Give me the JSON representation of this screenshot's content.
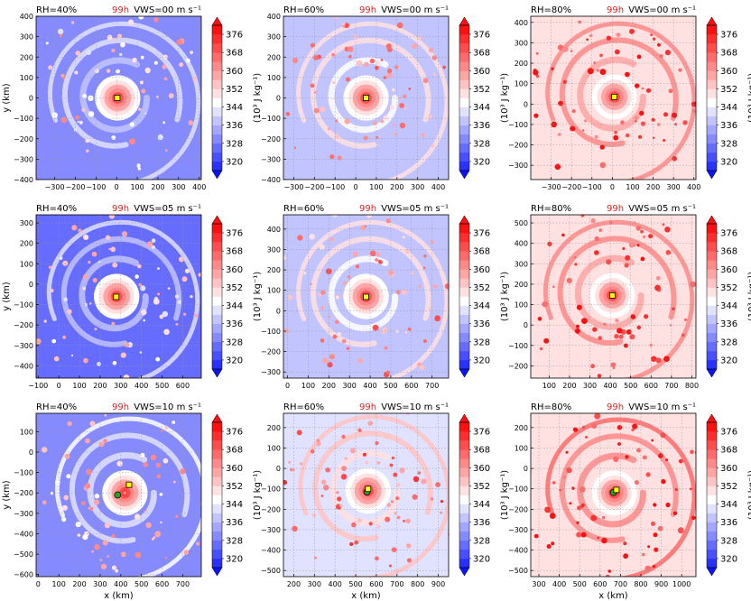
{
  "figure": {
    "x_axis_label": "x (km)",
    "y_axis_label": "y (km)",
    "colorbar_label": "(10³ J kg⁻¹)",
    "colorbar_ticks": [
      320,
      328,
      336,
      344,
      352,
      360,
      368,
      376
    ],
    "colorbar_range": [
      316,
      380
    ],
    "time_label": "99h",
    "colors": {
      "time_label": "#e41a1c",
      "low": "#0a14ff",
      "mid": "#ffffff",
      "high": "#ff1010",
      "green_marker": "#2ca02c",
      "yellow_marker": "#ffff00"
    }
  },
  "chart_data": [
    {
      "type": "heatmap",
      "rh_label": "RH=40%",
      "vws_label": "VWS=00 m s⁻¹",
      "time_label": "99h",
      "xlim": [
        -390,
        410
      ],
      "ylim": [
        -400,
        400
      ],
      "xticks": [
        -300,
        -200,
        -100,
        0,
        100,
        200,
        300,
        400
      ],
      "xtick_labels": [
        "−300",
        "−200",
        "−100",
        "0",
        "100",
        "200",
        "300",
        "400"
      ],
      "yticks": [
        -400,
        -300,
        -200,
        -100,
        0,
        100,
        200,
        300,
        400
      ],
      "ytick_labels": [
        "−400",
        "−300",
        "−200",
        "−100",
        "0",
        "100",
        "200",
        "300",
        "400"
      ],
      "center": [
        5,
        0
      ],
      "background": 330,
      "markers": [
        {
          "color": "yellow",
          "x": 3,
          "y": 0
        }
      ]
    },
    {
      "type": "heatmap",
      "rh_label": "RH=60%",
      "vws_label": "VWS=00 m s⁻¹",
      "time_label": "99h",
      "xlim": [
        -350,
        450
      ],
      "ylim": [
        -400,
        400
      ],
      "xticks": [
        -300,
        -200,
        -100,
        0,
        100,
        200,
        300,
        400
      ],
      "xtick_labels": [
        "−300",
        "−200",
        "−100",
        "0",
        "100",
        "200",
        "300",
        "400"
      ],
      "yticks": [
        -400,
        -300,
        -200,
        -100,
        0,
        100,
        200,
        300,
        400
      ],
      "ytick_labels": [
        "−400",
        "−300",
        "−200",
        "−100",
        "0",
        "100",
        "200",
        "300",
        "400"
      ],
      "center": [
        50,
        0
      ],
      "background": 338,
      "markers": [
        {
          "color": "yellow",
          "x": 50,
          "y": 0
        }
      ]
    },
    {
      "type": "heatmap",
      "rh_label": "RH=80%",
      "vws_label": "VWS=00 m s⁻¹",
      "time_label": "99h",
      "xlim": [
        -400,
        410
      ],
      "ylim": [
        -370,
        430
      ],
      "xticks": [
        -300,
        -200,
        -100,
        0,
        100,
        200,
        300,
        400
      ],
      "xtick_labels": [
        "−300",
        "−200",
        "−100",
        "0",
        "100",
        "200",
        "300",
        "400"
      ],
      "yticks": [
        -300,
        -200,
        -100,
        0,
        100,
        200,
        300,
        400
      ],
      "ytick_labels": [
        "−300",
        "−200",
        "−100",
        "0",
        "100",
        "200",
        "300",
        "400"
      ],
      "center": [
        10,
        35
      ],
      "background": 350,
      "markers": [
        {
          "color": "yellow",
          "x": 10,
          "y": 35
        }
      ]
    },
    {
      "type": "heatmap",
      "rh_label": "RH=40%",
      "vws_label": "VWS=05 m s⁻¹",
      "time_label": "99h",
      "xlim": [
        -110,
        690
      ],
      "ylim": [
        -460,
        340
      ],
      "xticks": [
        -100,
        0,
        100,
        200,
        300,
        400,
        500,
        600
      ],
      "xtick_labels": [
        "−100",
        "0",
        "100",
        "200",
        "300",
        "400",
        "500",
        "600"
      ],
      "yticks": [
        -400,
        -300,
        -200,
        -100,
        0,
        100,
        200,
        300
      ],
      "ytick_labels": [
        "−400",
        "−300",
        "−200",
        "−100",
        "0",
        "100",
        "200",
        "300"
      ],
      "center": [
        280,
        -60
      ],
      "background": 328,
      "markers": [
        {
          "color": "yellow",
          "x": 278,
          "y": -62
        }
      ]
    },
    {
      "type": "heatmap",
      "rh_label": "RH=60%",
      "vws_label": "VWS=05 m s⁻¹",
      "time_label": "99h",
      "xlim": [
        -20,
        780
      ],
      "ylim": [
        -330,
        470
      ],
      "xticks": [
        0,
        100,
        200,
        300,
        400,
        500,
        600,
        700
      ],
      "xtick_labels": [
        "0",
        "100",
        "200",
        "300",
        "400",
        "500",
        "600",
        "700"
      ],
      "yticks": [
        -300,
        -200,
        -100,
        0,
        100,
        200,
        300,
        400
      ],
      "ytick_labels": [
        "−300",
        "−200",
        "−100",
        "0",
        "100",
        "200",
        "300",
        "400"
      ],
      "center": [
        380,
        70
      ],
      "background": 338,
      "markers": [
        {
          "color": "yellow",
          "x": 380,
          "y": 68
        }
      ]
    },
    {
      "type": "heatmap",
      "rh_label": "RH=80%",
      "vws_label": "VWS=05 m s⁻¹",
      "time_label": "99h",
      "xlim": [
        10,
        820
      ],
      "ylim": [
        -260,
        540
      ],
      "xticks": [
        100,
        200,
        300,
        400,
        500,
        600,
        700,
        800
      ],
      "xtick_labels": [
        "100",
        "200",
        "300",
        "400",
        "500",
        "600",
        "700",
        "800"
      ],
      "yticks": [
        -200,
        -100,
        0,
        100,
        200,
        300,
        400,
        500
      ],
      "ytick_labels": [
        "−200",
        "−100",
        "0",
        "100",
        "200",
        "300",
        "400",
        "500"
      ],
      "center": [
        410,
        145
      ],
      "background": 350,
      "markers": [
        {
          "color": "yellow",
          "x": 410,
          "y": 145
        }
      ]
    },
    {
      "type": "heatmap",
      "rh_label": "RH=40%",
      "vws_label": "VWS=10 m s⁻¹",
      "time_label": "99h",
      "xlim": [
        -10,
        790
      ],
      "ylim": [
        -610,
        190
      ],
      "xticks": [
        0,
        100,
        200,
        300,
        400,
        500,
        600,
        700
      ],
      "xtick_labels": [
        "0",
        "100",
        "200",
        "300",
        "400",
        "500",
        "600",
        "700"
      ],
      "yticks": [
        -600,
        -500,
        -400,
        -300,
        -200,
        -100,
        0,
        100
      ],
      "ytick_labels": [
        "−600",
        "−500",
        "−400",
        "−300",
        "−200",
        "−100",
        "0",
        "100"
      ],
      "center": [
        420,
        -200
      ],
      "background": 332,
      "markers": [
        {
          "color": "green",
          "x": 385,
          "y": -210
        },
        {
          "color": "yellow",
          "x": 440,
          "y": -160
        }
      ]
    },
    {
      "type": "heatmap",
      "rh_label": "RH=60%",
      "vws_label": "VWS=10 m s⁻¹",
      "time_label": "99h",
      "xlim": [
        150,
        950
      ],
      "ylim": [
        -530,
        270
      ],
      "xticks": [
        200,
        300,
        400,
        500,
        600,
        700,
        800,
        900
      ],
      "xtick_labels": [
        "200",
        "300",
        "400",
        "500",
        "600",
        "700",
        "800",
        "900"
      ],
      "yticks": [
        -500,
        -400,
        -300,
        -200,
        -100,
        0,
        100,
        200
      ],
      "ytick_labels": [
        "−500",
        "−400",
        "−300",
        "−200",
        "−100",
        "0",
        "100",
        "200"
      ],
      "center": [
        560,
        -110
      ],
      "background": 342,
      "markers": [
        {
          "color": "green",
          "x": 555,
          "y": -115
        },
        {
          "color": "yellow",
          "x": 560,
          "y": -100
        }
      ]
    },
    {
      "type": "heatmap",
      "rh_label": "RH=80%",
      "vws_label": "VWS=10 m s⁻¹",
      "time_label": "99h",
      "xlim": [
        260,
        1070
      ],
      "ylim": [
        -530,
        270
      ],
      "xticks": [
        300,
        400,
        500,
        600,
        700,
        800,
        900,
        1000
      ],
      "xtick_labels": [
        "300",
        "400",
        "500",
        "600",
        "700",
        "800",
        "900",
        "1000"
      ],
      "yticks": [
        -500,
        -400,
        -300,
        -200,
        -100,
        0,
        100,
        200
      ],
      "ytick_labels": [
        "−500",
        "−400",
        "−300",
        "−200",
        "−100",
        "0",
        "100",
        "200"
      ],
      "center": [
        670,
        -120
      ],
      "background": 352,
      "markers": [
        {
          "color": "green",
          "x": 665,
          "y": -118
        },
        {
          "color": "yellow",
          "x": 680,
          "y": -105
        }
      ]
    }
  ]
}
